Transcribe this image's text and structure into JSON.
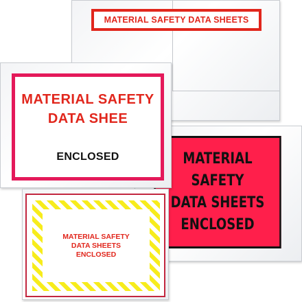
{
  "packing_lists": [
    {
      "label_lines": [
        "MATERIAL SAFETY DATA SHEETS"
      ],
      "label_text_color": "#e1261c",
      "label_border_color": "#e1261c"
    },
    {
      "label_lines": [
        "MATERIAL SAFETY",
        "DATA SHEETS",
        "ENCLOSED"
      ],
      "label_background_color": "#ff1f4b",
      "label_text_color": "#111111"
    },
    {
      "label_lines": [
        "MATERIAL SAFETY",
        "DATA SHEE",
        "ENCLOSED"
      ],
      "title_color": "#e1261c",
      "border_color": "#e4195a"
    },
    {
      "label_lines": [
        "MATERIAL SAFETY",
        "DATA SHEETS",
        "ENCLOSED"
      ],
      "label_text_color": "#e1261c",
      "stripe_color": "#f7ec1c"
    }
  ]
}
